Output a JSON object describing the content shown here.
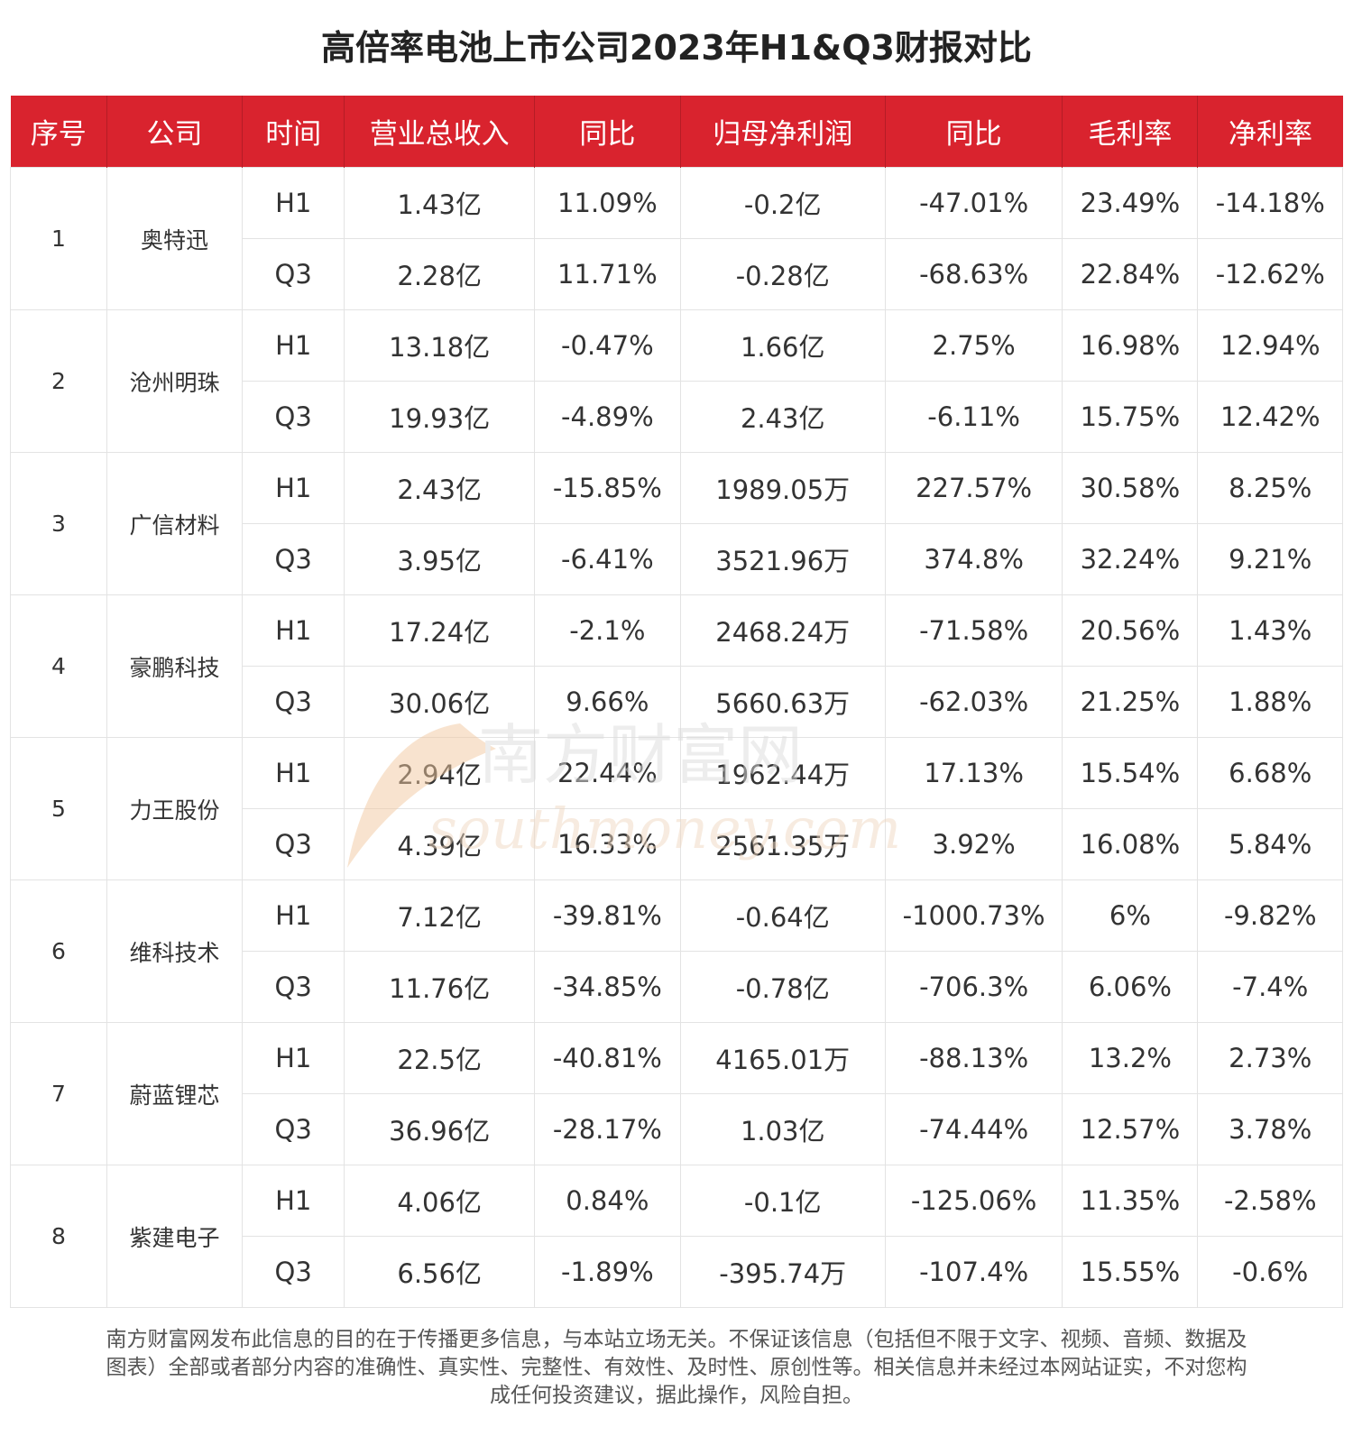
{
  "title": "高倍率电池上市公司2023年H1&Q3财报对比",
  "headers": [
    "序号",
    "公司",
    "时间",
    "营业总收入",
    "同比",
    "归母净利润",
    "同比",
    "毛利率",
    "净利率"
  ],
  "companies": [
    {
      "index": "1",
      "name": "奥特迅",
      "rows": [
        [
          "H1",
          "1.43亿",
          "11.09%",
          "-0.2亿",
          "-47.01%",
          "23.49%",
          "-14.18%"
        ],
        [
          "Q3",
          "2.28亿",
          "11.71%",
          "-0.28亿",
          "-68.63%",
          "22.84%",
          "-12.62%"
        ]
      ]
    },
    {
      "index": "2",
      "name": "沧州明珠",
      "rows": [
        [
          "H1",
          "13.18亿",
          "-0.47%",
          "1.66亿",
          "2.75%",
          "16.98%",
          "12.94%"
        ],
        [
          "Q3",
          "19.93亿",
          "-4.89%",
          "2.43亿",
          "-6.11%",
          "15.75%",
          "12.42%"
        ]
      ]
    },
    {
      "index": "3",
      "name": "广信材料",
      "rows": [
        [
          "H1",
          "2.43亿",
          "-15.85%",
          "1989.05万",
          "227.57%",
          "30.58%",
          "8.25%"
        ],
        [
          "Q3",
          "3.95亿",
          "-6.41%",
          "3521.96万",
          "374.8%",
          "32.24%",
          "9.21%"
        ]
      ]
    },
    {
      "index": "4",
      "name": "豪鹏科技",
      "rows": [
        [
          "H1",
          "17.24亿",
          "-2.1%",
          "2468.24万",
          "-71.58%",
          "20.56%",
          "1.43%"
        ],
        [
          "Q3",
          "30.06亿",
          "9.66%",
          "5660.63万",
          "-62.03%",
          "21.25%",
          "1.88%"
        ]
      ]
    },
    {
      "index": "5",
      "name": "力王股份",
      "rows": [
        [
          "H1",
          "2.94亿",
          "22.44%",
          "1962.44万",
          "17.13%",
          "15.54%",
          "6.68%"
        ],
        [
          "Q3",
          "4.39亿",
          "16.33%",
          "2561.35万",
          "3.92%",
          "16.08%",
          "5.84%"
        ]
      ]
    },
    {
      "index": "6",
      "name": "维科技术",
      "rows": [
        [
          "H1",
          "7.12亿",
          "-39.81%",
          "-0.64亿",
          "-1000.73%",
          "6%",
          "-9.82%"
        ],
        [
          "Q3",
          "11.76亿",
          "-34.85%",
          "-0.78亿",
          "-706.3%",
          "6.06%",
          "-7.4%"
        ]
      ]
    },
    {
      "index": "7",
      "name": "蔚蓝锂芯",
      "rows": [
        [
          "H1",
          "22.5亿",
          "-40.81%",
          "4165.01万",
          "-88.13%",
          "13.2%",
          "2.73%"
        ],
        [
          "Q3",
          "36.96亿",
          "-28.17%",
          "1.03亿",
          "-74.44%",
          "12.57%",
          "3.78%"
        ]
      ]
    },
    {
      "index": "8",
      "name": "紫建电子",
      "rows": [
        [
          "H1",
          "4.06亿",
          "0.84%",
          "-0.1亿",
          "-125.06%",
          "11.35%",
          "-2.58%"
        ],
        [
          "Q3",
          "6.56亿",
          "-1.89%",
          "-395.74万",
          "-107.4%",
          "15.55%",
          "-0.6%"
        ]
      ]
    }
  ],
  "watermark": {
    "cn": "南方财富网",
    "en": "southmoney.com"
  },
  "disclaimer": [
    "南方财富网发布此信息的目的在于传播更多信息，与本站立场无关。不保证该信息（包括但不限于文字、视频、音频、数据及",
    "图表）全部或者部分内容的准确性、真实性、完整性、有效性、及时性、原创性等。相关信息并未经过本网站证实，不对您构",
    "成任何投资建议，据此操作，风险自担。"
  ],
  "colors": {
    "header_bg": "#d9232e",
    "header_text": "#ffffff",
    "grid": "#e3e3e3",
    "watermark": "#e9c7a6"
  }
}
